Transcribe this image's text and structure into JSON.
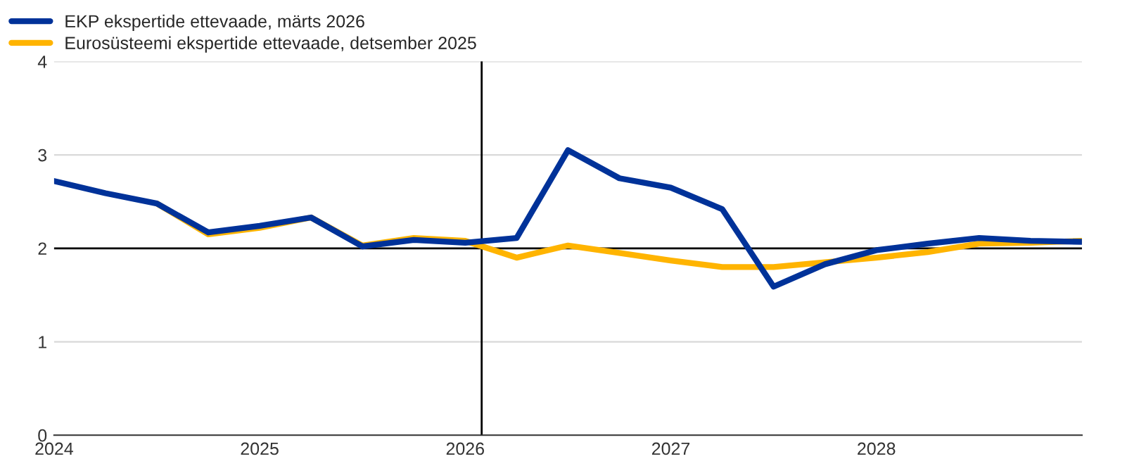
{
  "chart_data": {
    "type": "line",
    "x": [
      2024.0,
      2024.25,
      2024.5,
      2024.75,
      2025.0,
      2025.25,
      2025.5,
      2025.75,
      2026.0,
      2026.25,
      2026.5,
      2026.75,
      2027.0,
      2027.25,
      2027.5,
      2027.75,
      2028.0,
      2028.25,
      2028.5,
      2028.75,
      2029.0
    ],
    "series": [
      {
        "name": "EKP ekspertide ettevaade, märts 2026",
        "color": "#003299",
        "values": [
          2.72,
          2.59,
          2.48,
          2.17,
          2.24,
          2.33,
          2.02,
          2.09,
          2.06,
          2.11,
          3.05,
          2.75,
          2.65,
          2.42,
          1.59,
          1.83,
          1.98,
          2.05,
          2.11,
          2.08,
          2.07
        ]
      },
      {
        "name": "Eurosüsteemi ekspertide ettevaade, detsember 2025",
        "color": "#ffb400",
        "values": [
          null,
          null,
          2.48,
          2.15,
          2.22,
          2.33,
          2.03,
          2.11,
          2.08,
          1.9,
          2.03,
          1.95,
          1.87,
          1.8,
          1.8,
          1.85,
          1.9,
          1.96,
          2.05,
          2.06,
          2.08
        ]
      }
    ],
    "xlim": [
      2024.0,
      2029.0
    ],
    "xticks": [
      2024,
      2025,
      2026,
      2027,
      2028
    ],
    "ylim": [
      0,
      4
    ],
    "yticks": [
      0,
      1,
      2,
      3,
      4
    ],
    "grid": "y",
    "legend": "top left",
    "marker": "none",
    "line_style": "solid",
    "ref_lines": [
      {
        "axis": "y",
        "value": 2,
        "color": "#000000"
      },
      {
        "axis": "x",
        "value": 2026.08,
        "color": "#000000"
      }
    ]
  }
}
